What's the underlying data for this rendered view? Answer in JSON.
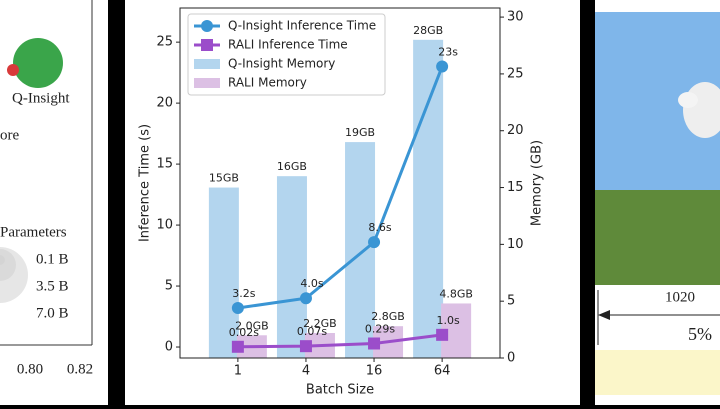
{
  "chart_data": {
    "type": "bar-line",
    "xlabel": "Batch Size",
    "ylabel": "Inference Time (s)",
    "y2label": "Memory (GB)",
    "categories": [
      "1",
      "4",
      "16",
      "64"
    ],
    "ylim": [
      -0.9,
      27.8
    ],
    "yticks": [
      0,
      5,
      10,
      15,
      20,
      25
    ],
    "y2lim": [
      0,
      30.8
    ],
    "y2ticks": [
      0,
      5,
      10,
      15,
      20,
      25,
      30
    ],
    "legend": "upper left",
    "series": [
      {
        "name": "Q-Insight Inference Time",
        "kind": "line",
        "marker": "circle",
        "color": "#3a95d4",
        "values": [
          3.2,
          4.0,
          8.6,
          23
        ],
        "value_labels": [
          "3.2s",
          "4.0s",
          "8.6s",
          "23s"
        ]
      },
      {
        "name": "RALI Inference Time",
        "kind": "line",
        "marker": "square",
        "color": "#9b4dca",
        "values": [
          0.02,
          0.07,
          0.29,
          1.0
        ],
        "value_labels": [
          "0.02s",
          "0.07s",
          "0.29s",
          "1.0s"
        ]
      },
      {
        "name": "Q-Insight Memory",
        "kind": "bar",
        "axis": "y2",
        "color": "#b3d5ee",
        "values": [
          15,
          16,
          19,
          28
        ],
        "value_labels": [
          "15GB",
          "16GB",
          "19GB",
          "28GB"
        ]
      },
      {
        "name": "RALI Memory",
        "kind": "bar",
        "axis": "y2",
        "color": "#dcc0e4",
        "values": [
          2.0,
          2.2,
          2.8,
          4.8
        ],
        "value_labels": [
          "2.0GB",
          "2.2GB",
          "2.8GB",
          "4.8GB"
        ]
      }
    ]
  },
  "left_panel": {
    "label": "Q-Insight",
    "fragment": "ore",
    "legend_title": "Parameters",
    "sizes": [
      "0.1 B",
      "3.5 B",
      "7.0 B"
    ],
    "xticks": [
      "0.80",
      "0.82"
    ]
  },
  "right_panel": {
    "dimension": "1020",
    "percent": "5%"
  }
}
